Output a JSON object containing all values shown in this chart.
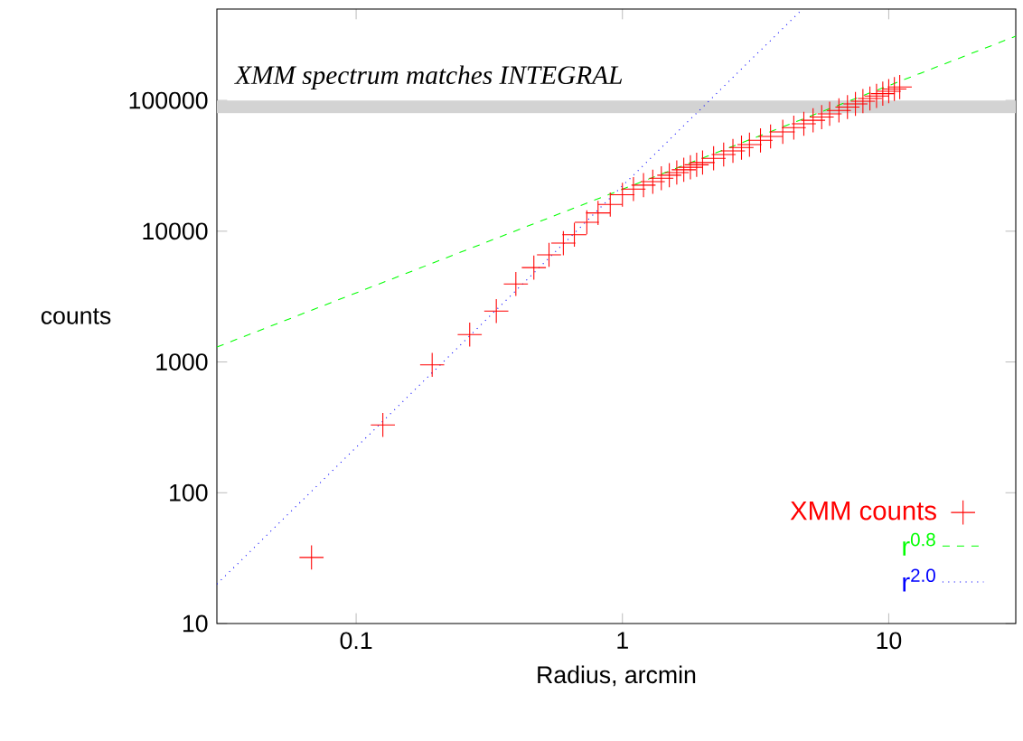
{
  "chart_data": {
    "type": "scatter",
    "xlabel": "Radius, arcmin",
    "ylabel": "counts",
    "log": "xy",
    "xlim": [
      0.03,
      30
    ],
    "ylim": [
      10,
      500000
    ],
    "xticks": [
      0.1,
      1,
      10
    ],
    "yticks": [
      10,
      100,
      1000,
      10000,
      100000
    ],
    "legend": "bottom right",
    "series": [
      {
        "name": "XMM counts",
        "marker": "cross",
        "color": "#ff0000",
        "x": [
          0.068,
          0.126,
          0.193,
          0.267,
          0.336,
          0.398,
          0.465,
          0.53,
          0.6,
          0.66,
          0.735,
          0.81,
          0.9,
          1.0,
          1.1,
          1.2,
          1.3,
          1.4,
          1.5,
          1.6,
          1.7,
          1.8,
          1.9,
          2.0,
          2.2,
          2.4,
          2.6,
          2.8,
          3.0,
          3.3,
          3.6,
          4.0,
          4.4,
          4.8,
          5.2,
          5.6,
          6.0,
          6.5,
          7.0,
          7.5,
          8.0,
          8.5,
          9.0,
          9.5,
          10,
          10.5,
          11
        ],
        "values": [
          32,
          330,
          950,
          1620,
          2450,
          3950,
          5270,
          6600,
          8100,
          9400,
          11700,
          13800,
          16000,
          19000,
          21000,
          22500,
          23900,
          25400,
          26800,
          28100,
          29500,
          30800,
          32200,
          33500,
          36100,
          38600,
          41100,
          43600,
          45900,
          49500,
          53000,
          57500,
          61900,
          66300,
          70500,
          74600,
          79000,
          83900,
          88900,
          94000,
          98700,
          103500,
          108200,
          112700,
          117600,
          122300,
          126600
        ]
      },
      {
        "name": "r$^{0.8}$",
        "type": "line",
        "marker": "none",
        "line_style": "dashed",
        "color": "#00ff00",
        "x": [
          0.03,
          30
        ],
        "values": [
          1300,
          310000
        ]
      },
      {
        "name": "r$^{2.0}$",
        "type": "line",
        "marker": "none",
        "line_style": "dotted",
        "color": "#0000ff",
        "x": [
          0.03,
          4.7
        ],
        "values": [
          20,
          490000
        ]
      }
    ],
    "bands": [
      {
        "axis": "y",
        "from": 80000,
        "to": 100000,
        "label": "XMM spectrum matches INTEGRAL",
        "color": "#d3d3d3"
      }
    ]
  }
}
